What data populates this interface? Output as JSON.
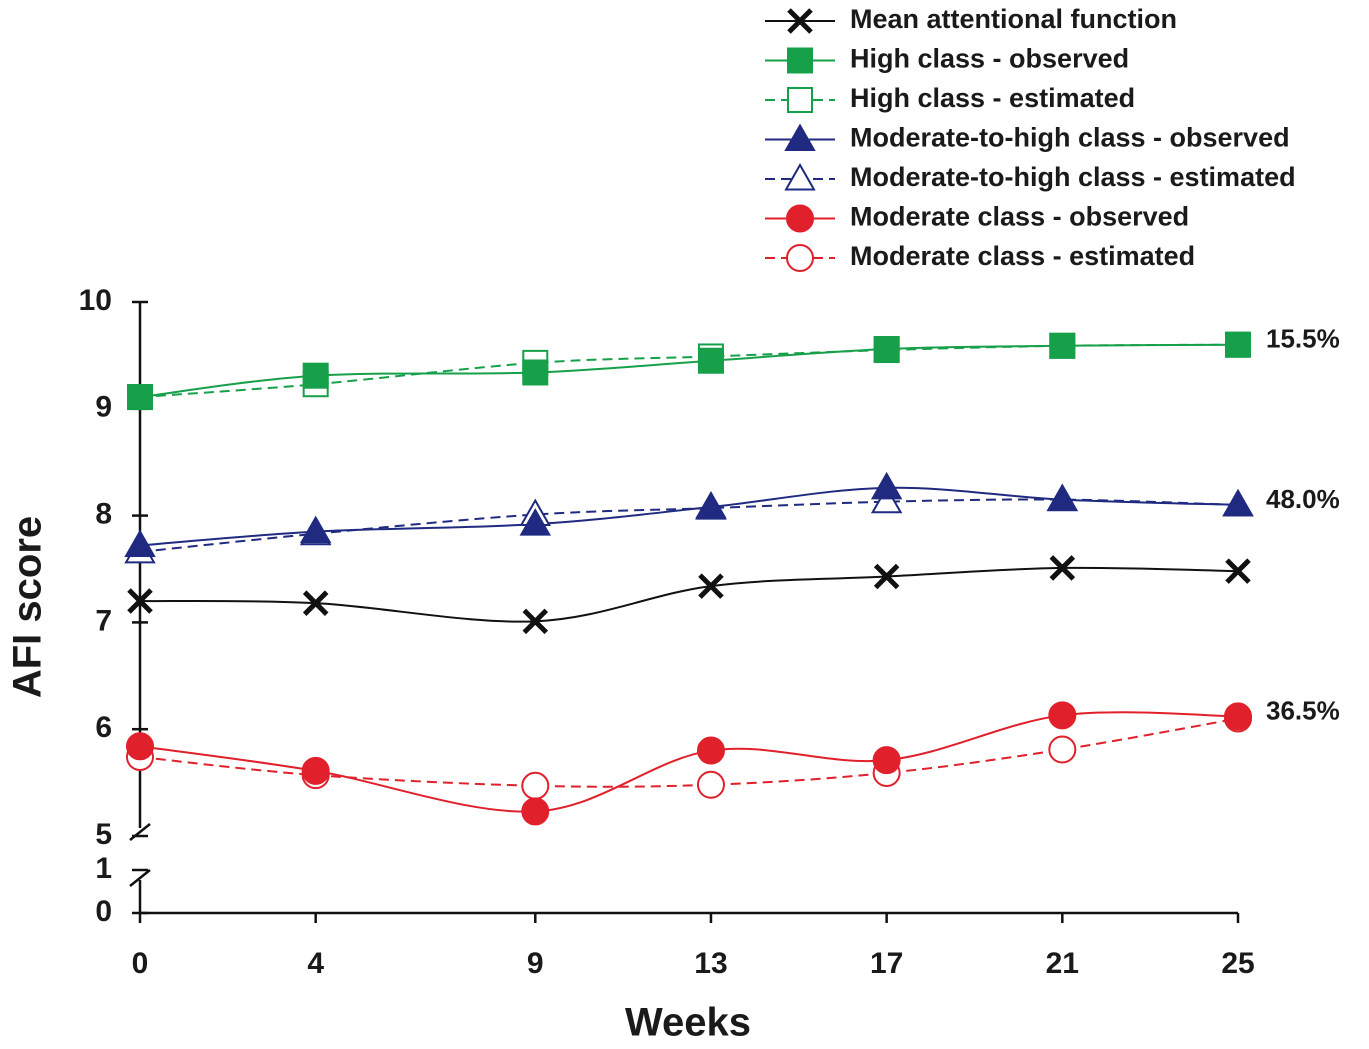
{
  "chart_data": {
    "type": "line",
    "x_label": "Weeks",
    "y_label": "AFI score",
    "x": [
      0,
      4,
      9,
      13,
      17,
      21,
      25
    ],
    "xlim": [
      0,
      25
    ],
    "xticks": [
      0,
      4,
      9,
      13,
      17,
      21,
      25
    ],
    "ylim": [
      0,
      10
    ],
    "yticks": [
      0,
      1,
      5,
      6,
      7,
      8,
      9,
      10
    ],
    "axis_break": [
      1,
      5
    ],
    "series": [
      {
        "name": "Mean attentional function",
        "color": "#111111",
        "marker": "x",
        "filled": true,
        "dashed": false,
        "values": [
          7.2,
          7.18,
          7.01,
          7.34,
          7.43,
          7.51,
          7.48
        ]
      },
      {
        "name": "High class - observed",
        "color": "#17a04a",
        "marker": "square",
        "filled": true,
        "dashed": false,
        "values": [
          9.11,
          9.31,
          9.34,
          9.45,
          9.56,
          9.59,
          9.6
        ],
        "end_label": "15.5%"
      },
      {
        "name": "High class - estimated",
        "color": "#17a04a",
        "marker": "square",
        "filled": false,
        "dashed": true,
        "values": [
          9.11,
          9.23,
          9.43,
          9.49,
          9.55,
          9.59,
          9.6
        ]
      },
      {
        "name": "Moderate-to-high class - observed",
        "color": "#1f2a80",
        "marker": "triangle",
        "filled": true,
        "dashed": false,
        "values": [
          7.72,
          7.85,
          7.92,
          8.08,
          8.26,
          8.15,
          8.1
        ],
        "end_label": "48.0%"
      },
      {
        "name": "Moderate-to-high class - estimated",
        "color": "#1f2a80",
        "marker": "triangle",
        "filled": false,
        "dashed": true,
        "values": [
          7.66,
          7.83,
          8.01,
          8.07,
          8.13,
          8.15,
          8.1
        ]
      },
      {
        "name": "Moderate class - observed",
        "color": "#e0202b",
        "marker": "circle",
        "filled": true,
        "dashed": false,
        "values": [
          5.84,
          5.61,
          5.23,
          5.8,
          5.71,
          6.13,
          6.12
        ],
        "end_label": "36.5%"
      },
      {
        "name": "Moderate class - estimated",
        "color": "#e0202b",
        "marker": "circle",
        "filled": false,
        "dashed": true,
        "values": [
          5.74,
          5.57,
          5.47,
          5.48,
          5.59,
          5.81,
          6.1
        ]
      }
    ]
  }
}
